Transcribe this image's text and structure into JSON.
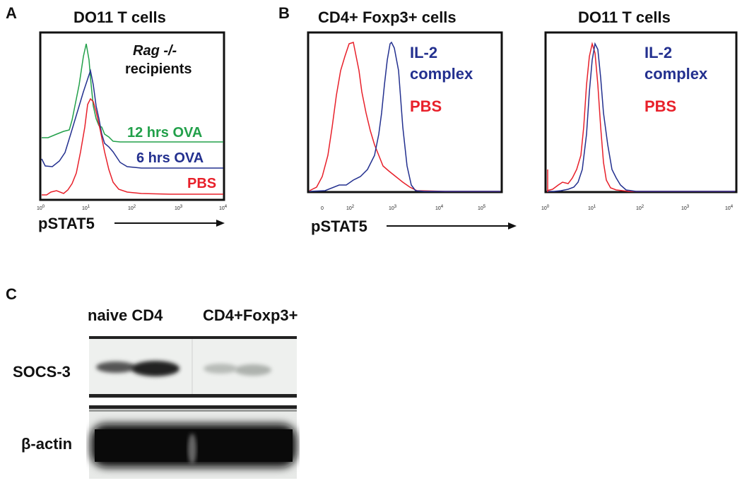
{
  "panel_a": {
    "letter": "A",
    "title": "DO11 T cells",
    "annotation_line1": "Rag -/-",
    "annotation_line2": "recipients",
    "axis_label": "pSTAT5",
    "ticks": [
      {
        "base": "10",
        "exp": "0"
      },
      {
        "base": "10",
        "exp": "1"
      },
      {
        "base": "10",
        "exp": "2"
      },
      {
        "base": "10",
        "exp": "3"
      },
      {
        "base": "10",
        "exp": "4"
      }
    ],
    "legend": [
      {
        "label": "12 hrs OVA",
        "color": "#22a04a"
      },
      {
        "label": "6 hrs OVA",
        "color": "#23308f"
      },
      {
        "label": "PBS",
        "color": "#e8202a"
      }
    ]
  },
  "panel_b": {
    "letter": "B",
    "left_title": "CD4+ Foxp3+ cells",
    "right_title": "DO11 T cells",
    "axis_label": "pSTAT5",
    "left_ticks": [
      {
        "base": "0",
        "exp": ""
      },
      {
        "base": "10",
        "exp": "2"
      },
      {
        "base": "10",
        "exp": "3"
      },
      {
        "base": "10",
        "exp": "4"
      },
      {
        "base": "10",
        "exp": "5"
      }
    ],
    "right_ticks": [
      {
        "base": "10",
        "exp": "0"
      },
      {
        "base": "10",
        "exp": "1"
      },
      {
        "base": "10",
        "exp": "2"
      },
      {
        "base": "10",
        "exp": "3"
      },
      {
        "base": "10",
        "exp": "4"
      }
    ],
    "legend_l1": "IL-2",
    "legend_l2": "complex",
    "legend_pbs": "PBS",
    "color_il2": "#23308f",
    "color_pbs": "#e8202a"
  },
  "panel_c": {
    "letter": "C",
    "col1": "naive CD4",
    "col2": "CD4+Foxp3+",
    "row1": "SOCS-3",
    "row2": "β-actin"
  },
  "chart_data": [
    {
      "type": "line",
      "title": "DO11 T cells",
      "xlabel": "pSTAT5",
      "xscale": "log",
      "xlim": [
        1,
        10000
      ],
      "series": [
        {
          "name": "12 hrs OVA",
          "x": [
            1,
            3,
            6,
            9,
            12,
            20,
            40,
            100,
            1000,
            10000
          ],
          "y": [
            0.55,
            0.6,
            0.7,
            1.0,
            0.7,
            0.45,
            0.42,
            0.41,
            0.4,
            0.4
          ]
        },
        {
          "name": "6 hrs OVA",
          "x": [
            1,
            3,
            6,
            10,
            14,
            20,
            40,
            100,
            1000,
            10000
          ],
          "y": [
            0.3,
            0.4,
            0.5,
            0.83,
            0.63,
            0.4,
            0.27,
            0.22,
            0.22,
            0.22
          ]
        },
        {
          "name": "PBS",
          "x": [
            1,
            3,
            6,
            10,
            13,
            20,
            40,
            100,
            1000,
            10000
          ],
          "y": [
            0.02,
            0.05,
            0.12,
            0.55,
            0.62,
            0.4,
            0.08,
            0.02,
            0.01,
            0.01
          ]
        }
      ]
    },
    {
      "type": "line",
      "title": "CD4+ Foxp3+ cells",
      "xlabel": "pSTAT5",
      "series": [
        {
          "name": "IL-2 complex",
          "x": [
            0,
            100,
            300,
            600,
            1000,
            1500,
            3000,
            10000,
            100000
          ],
          "y": [
            0.0,
            0.05,
            0.2,
            0.6,
            0.95,
            0.7,
            0.05,
            0.0,
            0.0
          ]
        },
        {
          "name": "PBS",
          "x": [
            0,
            50,
            100,
            150,
            300,
            600,
            1000,
            3000,
            100000
          ],
          "y": [
            0.05,
            0.75,
            1.0,
            0.75,
            0.3,
            0.15,
            0.08,
            0.0,
            0.0
          ]
        }
      ]
    },
    {
      "type": "line",
      "title": "DO11 T cells",
      "xscale": "log",
      "xlim": [
        1,
        10000
      ],
      "series": [
        {
          "name": "IL-2 complex",
          "x": [
            1,
            3,
            6,
            10,
            12,
            18,
            30,
            60,
            10000
          ],
          "y": [
            0.05,
            0.05,
            0.25,
            0.9,
            1.0,
            0.4,
            0.15,
            0.02,
            0.0
          ]
        },
        {
          "name": "PBS",
          "x": [
            1,
            2,
            5,
            8,
            10,
            14,
            20,
            40,
            10000
          ],
          "y": [
            0.1,
            0.08,
            0.25,
            0.6,
            1.0,
            0.45,
            0.1,
            0.02,
            0.0
          ]
        }
      ]
    }
  ]
}
